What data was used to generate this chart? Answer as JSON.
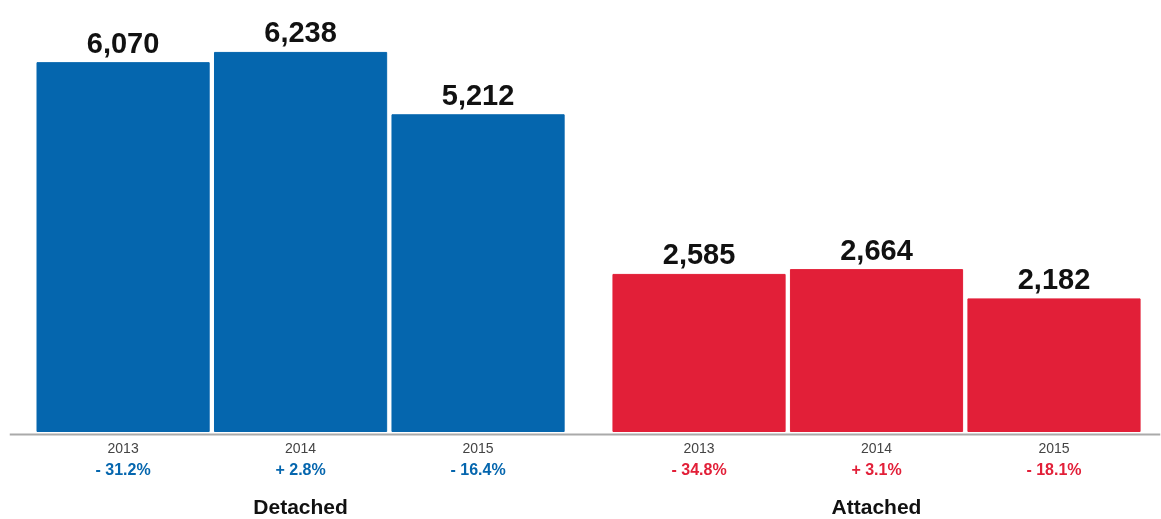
{
  "chart_data": {
    "type": "bar",
    "categories": [
      "2013",
      "2014",
      "2015",
      "2013",
      "2014",
      "2015"
    ],
    "series": [
      {
        "color": "#0566ae",
        "values": [
          6070,
          6238,
          5212,
          null,
          null,
          null
        ],
        "value_labels": [
          "6,070",
          "6,238",
          "5,212",
          null,
          null,
          null
        ]
      },
      {
        "color": "#e21f38",
        "values": [
          null,
          null,
          null,
          2585,
          2664,
          2182
        ],
        "value_labels": [
          null,
          null,
          null,
          "2,585",
          "2,664",
          "2,182"
        ]
      }
    ],
    "annotations": [
      "- 31.2%",
      "+ 2.8%",
      "- 16.4%",
      "- 34.8%",
      "+ 3.1%",
      "- 18.1%",
      "Detached",
      "Attached"
    ],
    "grid": false,
    "tick_labels": "x"
  }
}
